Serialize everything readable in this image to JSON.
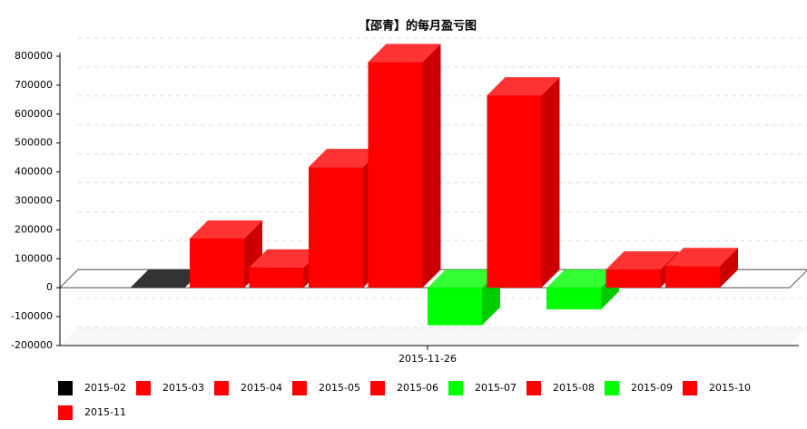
{
  "chart_data": {
    "type": "bar3d",
    "title": "【邵青】的每月盈亏图",
    "categories": [
      "2015-11-26"
    ],
    "series": [
      {
        "name": "2015-02",
        "color": "#000000",
        "values": [
          0
        ]
      },
      {
        "name": "2015-03",
        "color": "#ff0000",
        "values": [
          170000
        ]
      },
      {
        "name": "2015-04",
        "color": "#ff0000",
        "values": [
          70000
        ]
      },
      {
        "name": "2015-05",
        "color": "#ff0000",
        "values": [
          417000
        ]
      },
      {
        "name": "2015-06",
        "color": "#ff0000",
        "values": [
          780000
        ]
      },
      {
        "name": "2015-07",
        "color": "#00ff00",
        "values": [
          -130000
        ]
      },
      {
        "name": "2015-08",
        "color": "#ff0000",
        "values": [
          665000
        ]
      },
      {
        "name": "2015-09",
        "color": "#00ff00",
        "values": [
          -75000
        ]
      },
      {
        "name": "2015-10",
        "color": "#ff0000",
        "values": [
          63000
        ]
      },
      {
        "name": "2015-11",
        "color": "#ff0000",
        "values": [
          75000
        ]
      }
    ],
    "ylim": [
      -200000,
      800000
    ],
    "yticks": [
      -200000,
      -100000,
      0,
      100000,
      200000,
      300000,
      400000,
      500000,
      600000,
      700000,
      800000
    ],
    "grid": true,
    "legend": "bottom"
  }
}
